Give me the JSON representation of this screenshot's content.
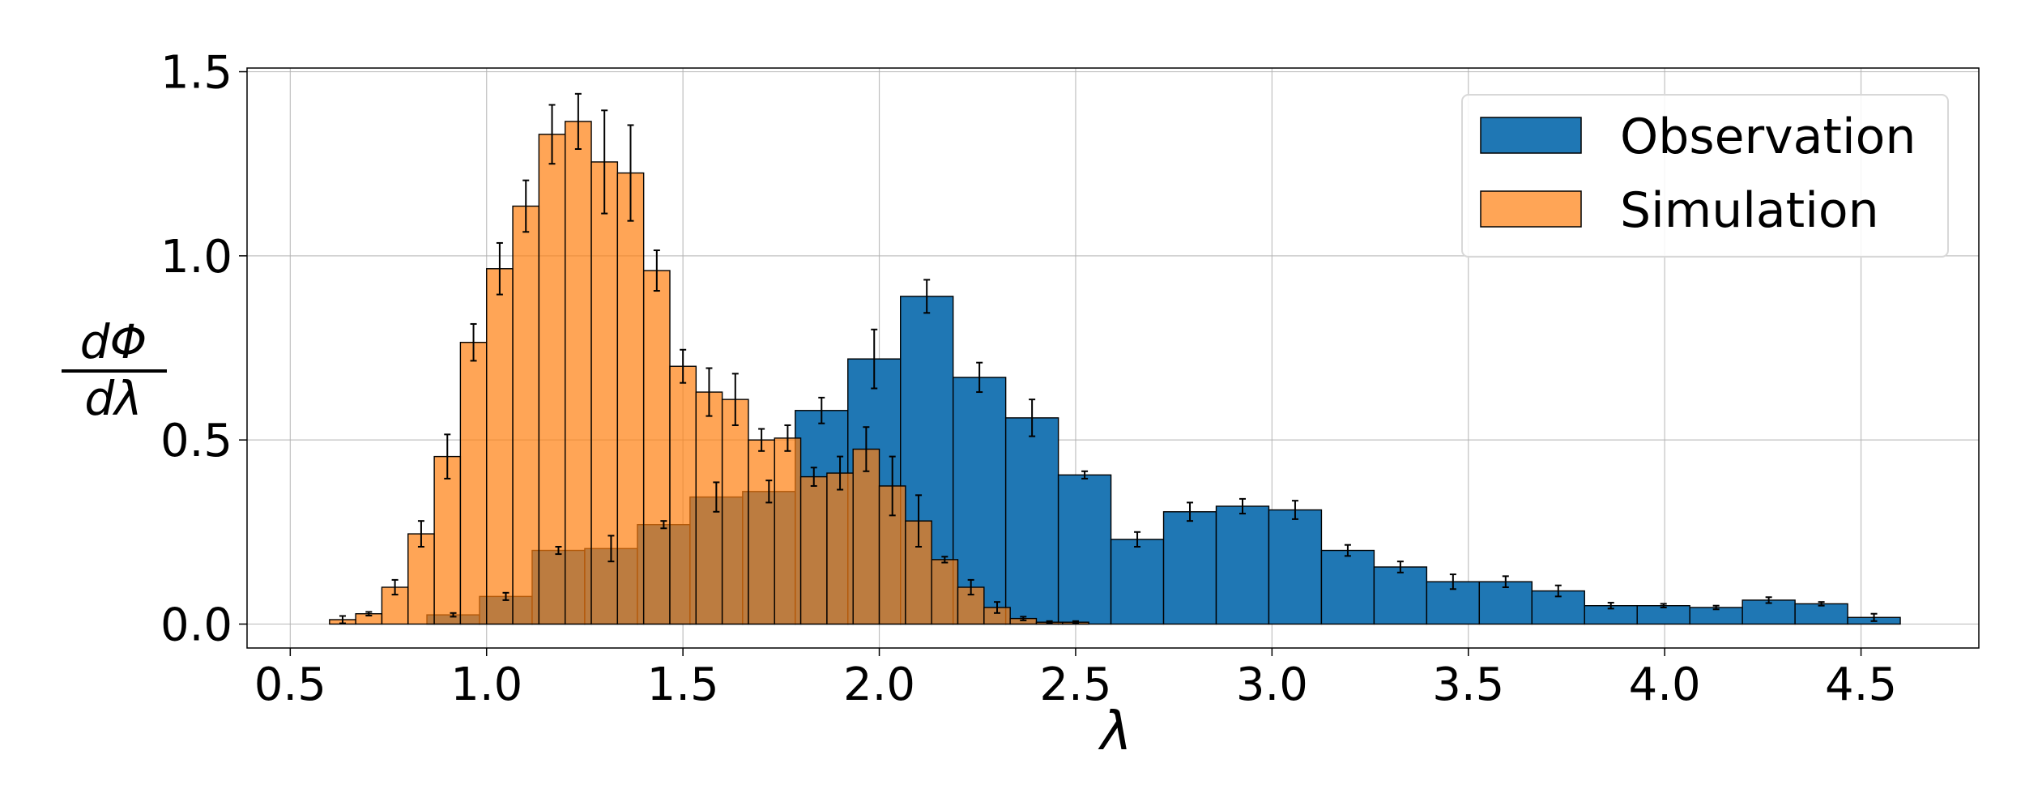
{
  "chart_data": {
    "type": "bar",
    "xlabel": "λ",
    "ylabel_numerator": "dΦ",
    "ylabel_denominator": "dλ",
    "xlim": [
      0.39,
      4.8
    ],
    "ylim": [
      -0.065,
      1.51
    ],
    "xticks": [
      "0.5",
      "1.0",
      "1.5",
      "2.0",
      "2.5",
      "3.0",
      "3.5",
      "4.0",
      "4.5"
    ],
    "yticks": [
      "0.0",
      "0.5",
      "1.0",
      "1.5"
    ],
    "grid": true,
    "legend_position": "top-right",
    "colors": {
      "observation": "#1f77b4",
      "simulation": "#ff7f0e",
      "error_bar": "#000000"
    },
    "observation": {
      "name": "Observation",
      "bin_width": 0.134,
      "bins": [
        {
          "x0": 0.58,
          "v": 0.0,
          "e": 0.0
        },
        {
          "x0": 0.714,
          "v": 0.0,
          "e": 0.0
        },
        {
          "x0": 0.848,
          "v": 0.025,
          "e": 0.005
        },
        {
          "x0": 0.982,
          "v": 0.075,
          "e": 0.01
        },
        {
          "x0": 1.116,
          "v": 0.2,
          "e": 0.01
        },
        {
          "x0": 1.25,
          "v": 0.205,
          "e": 0.035
        },
        {
          "x0": 1.384,
          "v": 0.27,
          "e": 0.01
        },
        {
          "x0": 1.518,
          "v": 0.345,
          "e": 0.04
        },
        {
          "x0": 1.652,
          "v": 0.36,
          "e": 0.03
        },
        {
          "x0": 1.786,
          "v": 0.58,
          "e": 0.035
        },
        {
          "x0": 1.92,
          "v": 0.72,
          "e": 0.08
        },
        {
          "x0": 2.054,
          "v": 0.89,
          "e": 0.045
        },
        {
          "x0": 2.188,
          "v": 0.67,
          "e": 0.04
        },
        {
          "x0": 2.322,
          "v": 0.56,
          "e": 0.05
        },
        {
          "x0": 2.456,
          "v": 0.405,
          "e": 0.01
        },
        {
          "x0": 2.59,
          "v": 0.23,
          "e": 0.02
        },
        {
          "x0": 2.724,
          "v": 0.305,
          "e": 0.025
        },
        {
          "x0": 2.858,
          "v": 0.32,
          "e": 0.02
        },
        {
          "x0": 2.992,
          "v": 0.31,
          "e": 0.025
        },
        {
          "x0": 3.126,
          "v": 0.2,
          "e": 0.015
        },
        {
          "x0": 3.26,
          "v": 0.155,
          "e": 0.015
        },
        {
          "x0": 3.394,
          "v": 0.115,
          "e": 0.02
        },
        {
          "x0": 3.528,
          "v": 0.115,
          "e": 0.015
        },
        {
          "x0": 3.662,
          "v": 0.09,
          "e": 0.015
        },
        {
          "x0": 3.796,
          "v": 0.05,
          "e": 0.008
        },
        {
          "x0": 3.93,
          "v": 0.05,
          "e": 0.005
        },
        {
          "x0": 4.064,
          "v": 0.045,
          "e": 0.005
        },
        {
          "x0": 4.198,
          "v": 0.065,
          "e": 0.008
        },
        {
          "x0": 4.332,
          "v": 0.055,
          "e": 0.005
        },
        {
          "x0": 4.466,
          "v": 0.018,
          "e": 0.01
        }
      ]
    },
    "simulation": {
      "name": "Simulation",
      "bin_width": 0.0667,
      "bins": [
        {
          "x0": 0.6,
          "v": 0.012,
          "e": 0.01
        },
        {
          "x0": 0.6667,
          "v": 0.028,
          "e": 0.005
        },
        {
          "x0": 0.7333,
          "v": 0.1,
          "e": 0.02
        },
        {
          "x0": 0.8,
          "v": 0.245,
          "e": 0.035
        },
        {
          "x0": 0.8667,
          "v": 0.455,
          "e": 0.06
        },
        {
          "x0": 0.9333,
          "v": 0.765,
          "e": 0.05
        },
        {
          "x0": 1.0,
          "v": 0.965,
          "e": 0.07
        },
        {
          "x0": 1.0667,
          "v": 1.135,
          "e": 0.07
        },
        {
          "x0": 1.1333,
          "v": 1.33,
          "e": 0.08
        },
        {
          "x0": 1.2,
          "v": 1.365,
          "e": 0.075
        },
        {
          "x0": 1.2667,
          "v": 1.255,
          "e": 0.14
        },
        {
          "x0": 1.3333,
          "v": 1.225,
          "e": 0.13
        },
        {
          "x0": 1.4,
          "v": 0.96,
          "e": 0.055
        },
        {
          "x0": 1.4667,
          "v": 0.7,
          "e": 0.045
        },
        {
          "x0": 1.5333,
          "v": 0.63,
          "e": 0.065
        },
        {
          "x0": 1.6,
          "v": 0.61,
          "e": 0.07
        },
        {
          "x0": 1.6667,
          "v": 0.5,
          "e": 0.03
        },
        {
          "x0": 1.7333,
          "v": 0.505,
          "e": 0.035
        },
        {
          "x0": 1.8,
          "v": 0.4,
          "e": 0.025
        },
        {
          "x0": 1.8667,
          "v": 0.41,
          "e": 0.045
        },
        {
          "x0": 1.9333,
          "v": 0.475,
          "e": 0.06
        },
        {
          "x0": 2.0,
          "v": 0.375,
          "e": 0.08
        },
        {
          "x0": 2.0667,
          "v": 0.28,
          "e": 0.07
        },
        {
          "x0": 2.1333,
          "v": 0.175,
          "e": 0.008
        },
        {
          "x0": 2.2,
          "v": 0.1,
          "e": 0.02
        },
        {
          "x0": 2.2667,
          "v": 0.045,
          "e": 0.015
        },
        {
          "x0": 2.3333,
          "v": 0.015,
          "e": 0.005
        },
        {
          "x0": 2.4,
          "v": 0.005,
          "e": 0.003
        },
        {
          "x0": 2.4667,
          "v": 0.005,
          "e": 0.003
        }
      ]
    }
  }
}
